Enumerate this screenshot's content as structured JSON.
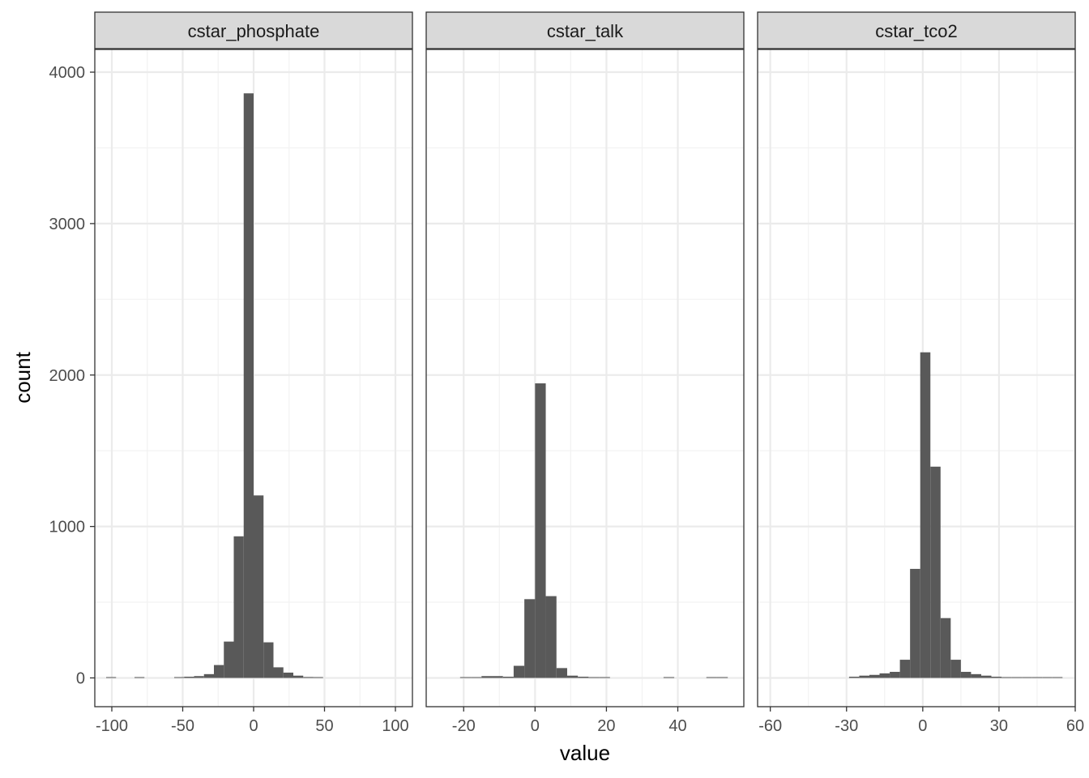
{
  "chart_data": {
    "type": "bar",
    "subtype": "histogram",
    "layout": "facet-wrap, 3 panels in one row, shared y axis",
    "xlabel": "value",
    "ylabel": "count",
    "ylim": [
      -190,
      4150
    ],
    "yticks": [
      0,
      1000,
      2000,
      3000,
      4000
    ],
    "grid": true,
    "bar_color": "#595959",
    "panels": [
      {
        "name": "cstar_phosphate",
        "xlim": [
          -112,
          112
        ],
        "xticks": [
          -100,
          -50,
          0,
          50,
          100
        ],
        "bins": [
          {
            "x0": -104,
            "x1": -97,
            "count": 3
          },
          {
            "x0": -84,
            "x1": -77,
            "count": 3
          },
          {
            "x0": -56,
            "x1": -49,
            "count": 3
          },
          {
            "x0": -49,
            "x1": -42,
            "count": 8
          },
          {
            "x0": -42,
            "x1": -35,
            "count": 12
          },
          {
            "x0": -35,
            "x1": -28,
            "count": 25
          },
          {
            "x0": -28,
            "x1": -21,
            "count": 85
          },
          {
            "x0": -21,
            "x1": -14,
            "count": 240
          },
          {
            "x0": -14,
            "x1": -7,
            "count": 935
          },
          {
            "x0": -7,
            "x1": 0,
            "count": 3860
          },
          {
            "x0": 0,
            "x1": 7,
            "count": 1205
          },
          {
            "x0": 7,
            "x1": 14,
            "count": 235
          },
          {
            "x0": 14,
            "x1": 21,
            "count": 70
          },
          {
            "x0": 21,
            "x1": 28,
            "count": 35
          },
          {
            "x0": 28,
            "x1": 35,
            "count": 15
          },
          {
            "x0": 35,
            "x1": 42,
            "count": 6
          },
          {
            "x0": 42,
            "x1": 49,
            "count": 3
          }
        ]
      },
      {
        "name": "cstar_talk",
        "xlim": [
          -30.5,
          58.5
        ],
        "xticks": [
          -20,
          0,
          20,
          40
        ],
        "bins": [
          {
            "x0": -21,
            "x1": -18,
            "count": 3
          },
          {
            "x0": -18,
            "x1": -15,
            "count": 5
          },
          {
            "x0": -15,
            "x1": -12,
            "count": 12
          },
          {
            "x0": -12,
            "x1": -9,
            "count": 12
          },
          {
            "x0": -9,
            "x1": -6,
            "count": 8
          },
          {
            "x0": -6,
            "x1": -3,
            "count": 80
          },
          {
            "x0": -3,
            "x1": 0,
            "count": 520
          },
          {
            "x0": 0,
            "x1": 3,
            "count": 1945
          },
          {
            "x0": 3,
            "x1": 6,
            "count": 540
          },
          {
            "x0": 6,
            "x1": 9,
            "count": 65
          },
          {
            "x0": 9,
            "x1": 12,
            "count": 15
          },
          {
            "x0": 12,
            "x1": 15,
            "count": 8
          },
          {
            "x0": 15,
            "x1": 18,
            "count": 5
          },
          {
            "x0": 18,
            "x1": 21,
            "count": 3
          },
          {
            "x0": 36,
            "x1": 39,
            "count": 3
          },
          {
            "x0": 48,
            "x1": 51,
            "count": 3
          },
          {
            "x0": 51,
            "x1": 54,
            "count": 3
          }
        ]
      },
      {
        "name": "cstar_tco2",
        "xlim": [
          -65,
          60
        ],
        "xticks": [
          -60,
          -30,
          0,
          30,
          60
        ],
        "bins": [
          {
            "x0": -29,
            "x1": -25,
            "count": 8
          },
          {
            "x0": -25,
            "x1": -21,
            "count": 15
          },
          {
            "x0": -21,
            "x1": -17,
            "count": 20
          },
          {
            "x0": -17,
            "x1": -13,
            "count": 30
          },
          {
            "x0": -13,
            "x1": -9,
            "count": 40
          },
          {
            "x0": -9,
            "x1": -5,
            "count": 120
          },
          {
            "x0": -5,
            "x1": -1,
            "count": 720
          },
          {
            "x0": -1,
            "x1": 3,
            "count": 2150
          },
          {
            "x0": 3,
            "x1": 7,
            "count": 1395
          },
          {
            "x0": 7,
            "x1": 11,
            "count": 395
          },
          {
            "x0": 11,
            "x1": 15,
            "count": 120
          },
          {
            "x0": 15,
            "x1": 19,
            "count": 40
          },
          {
            "x0": 19,
            "x1": 23,
            "count": 25
          },
          {
            "x0": 23,
            "x1": 27,
            "count": 15
          },
          {
            "x0": 27,
            "x1": 31,
            "count": 8
          },
          {
            "x0": 31,
            "x1": 35,
            "count": 3
          },
          {
            "x0": 35,
            "x1": 39,
            "count": 3
          },
          {
            "x0": 39,
            "x1": 43,
            "count": 3
          },
          {
            "x0": 43,
            "x1": 47,
            "count": 3
          },
          {
            "x0": 47,
            "x1": 51,
            "count": 3
          },
          {
            "x0": 51,
            "x1": 55,
            "count": 3
          }
        ]
      }
    ]
  }
}
